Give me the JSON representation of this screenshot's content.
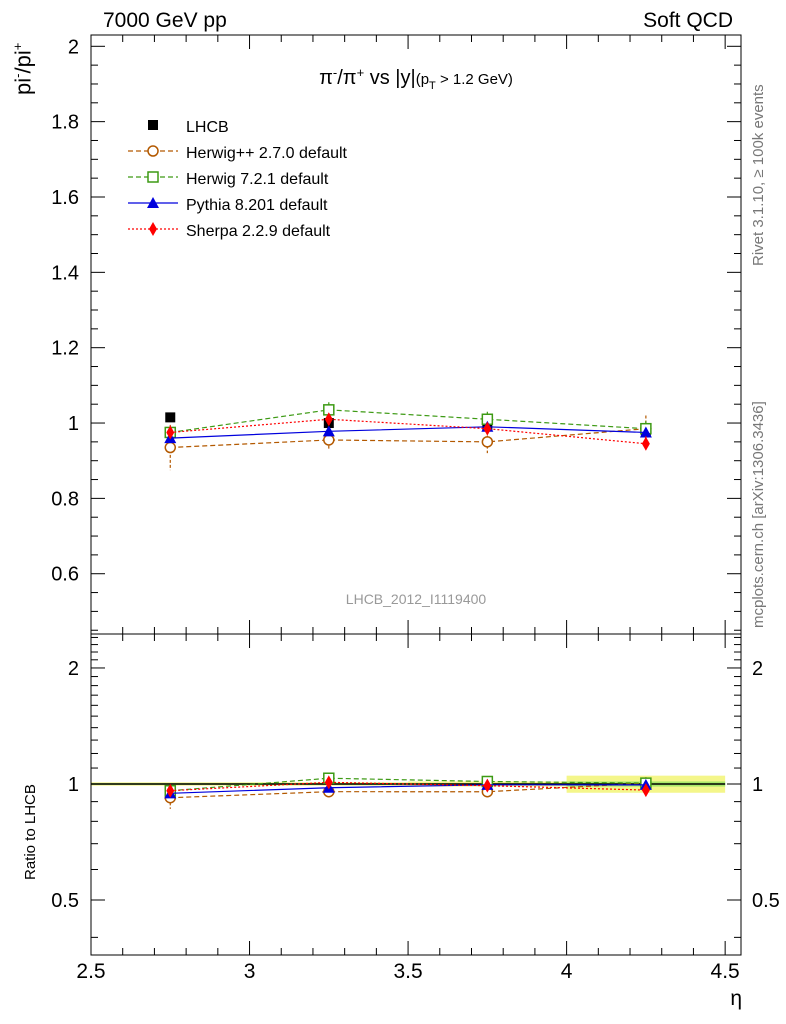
{
  "header": {
    "left": "7000 GeV pp",
    "right": "Soft QCD"
  },
  "side_text": {
    "rivet": "Rivet 3.1.10, ≥ 100k events",
    "mcplots": "mcplots.cern.ch [arXiv:1306.3436]"
  },
  "analysis_tag": "LHCB_2012_I1119400",
  "chart_data": {
    "type": "line",
    "title": "π⁻/π⁺ vs |y|(p_T > 1.2 GeV)",
    "ylabel": "pi-/pi+",
    "ratio_ylabel": "Ratio to LHCB",
    "xlabel": "η",
    "xlim": [
      2.5,
      4.55
    ],
    "ylim": [
      0.44,
      2.03
    ],
    "ratio_ylim": [
      0.36,
      2.45
    ],
    "x_ticks": [
      2.5,
      3,
      3.5,
      4,
      4.5
    ],
    "x_tick_labels": [
      "2.5",
      "3",
      "3.5",
      "4",
      "4.5"
    ],
    "y_ticks": [
      0.6,
      0.8,
      1,
      1.2,
      1.4,
      1.6,
      1.8,
      2
    ],
    "y_tick_labels": [
      "0.6",
      "0.8",
      "1",
      "1.2",
      "1.4",
      "1.6",
      "1.8",
      "2"
    ],
    "ratio_ticks": [
      0.5,
      1,
      2
    ],
    "ratio_tick_labels": [
      "0.5",
      "1",
      "2"
    ],
    "x": [
      2.75,
      3.25,
      3.75,
      4.25
    ],
    "xerr": 0.25,
    "legend_position": "top-left",
    "data": {
      "name": "LHCB",
      "color": "#000000",
      "values": [
        1.015,
        1.0,
        0.995,
        0.98
      ],
      "err": [
        0.005,
        0.005,
        0.005,
        0.015
      ],
      "band_err": [
        0.01,
        0.01,
        0.015,
        0.05
      ]
    },
    "series": [
      {
        "name": "Herwig++ 2.7.0 default",
        "color": "#b35900",
        "dash": "5,3",
        "marker": "open-circle",
        "values": [
          0.935,
          0.955,
          0.95,
          0.985
        ],
        "err": [
          0.06,
          0.025,
          0.03,
          0.035
        ]
      },
      {
        "name": "Herwig 7.2.1 default",
        "color": "#3d9a14",
        "dash": "5,3",
        "marker": "open-square",
        "values": [
          0.975,
          1.035,
          1.01,
          0.985
        ],
        "err": [
          0.01,
          0.02,
          0.02,
          0.02
        ]
      },
      {
        "name": "Pythia 8.201 default",
        "color": "#0000dd",
        "dash": "",
        "marker": "triangle",
        "values": [
          0.96,
          0.978,
          0.99,
          0.975
        ],
        "err": [
          0.01,
          0.01,
          0.01,
          0.01
        ]
      },
      {
        "name": "Sherpa 2.2.9 default",
        "color": "#ff0000",
        "dash": "2,2",
        "marker": "diamond",
        "values": [
          0.975,
          1.01,
          0.985,
          0.945
        ],
        "err": [
          0.01,
          0.015,
          0.015,
          0.02
        ]
      }
    ]
  }
}
